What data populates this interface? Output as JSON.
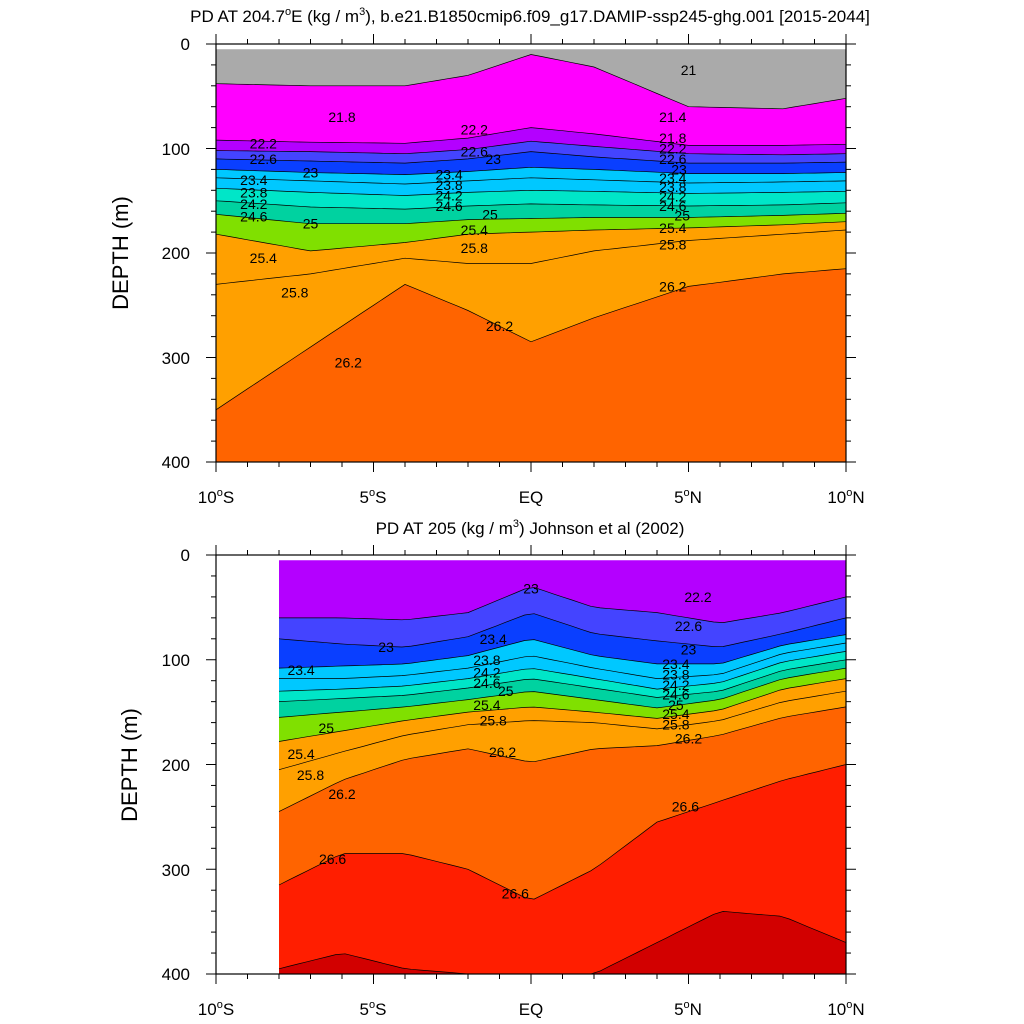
{
  "chart_data": [
    {
      "type": "contour",
      "title": "PD AT 204.7°E (kg / m³), b.e21.B1850cmip6.f09_g17.DAMIP-ssp245-ghg.001 [2015-2044]",
      "title_parts": {
        "prefix": "PD AT 204.7",
        "degree": "o",
        "suffix_a": "E (kg / m",
        "power": "3",
        "suffix_b": "), b.e21.B1850cmip6.f09_g17.DAMIP-ssp245-ghg.001 [2015-2044]"
      },
      "xlabel": "",
      "ylabel": "DEPTH (m)",
      "xlim": [
        -10,
        10
      ],
      "ylim": [
        0,
        400
      ],
      "y_inverted": true,
      "x_ticks": [
        {
          "value": -10,
          "num": "10",
          "sup": "o",
          "suffix": "S"
        },
        {
          "value": -5,
          "num": "5",
          "sup": "o",
          "suffix": "S"
        },
        {
          "value": 0,
          "num": "EQ",
          "sup": "",
          "suffix": ""
        },
        {
          "value": 5,
          "num": "5",
          "sup": "o",
          "suffix": "N"
        },
        {
          "value": 10,
          "num": "10",
          "sup": "o",
          "suffix": "N"
        }
      ],
      "y_ticks": [
        0,
        100,
        200,
        300,
        400
      ],
      "data_x_range": [
        -10,
        10
      ],
      "contour_interval": 0.2,
      "isopycnals": [
        {
          "value": 21.8,
          "x": [
            -10,
            -7,
            -4,
            -2,
            0,
            2,
            5,
            8,
            10
          ],
          "y": [
            38,
            40,
            40,
            30,
            10,
            22,
            60,
            62,
            52
          ]
        },
        {
          "value": 22.2,
          "x": [
            -10,
            -7,
            -4,
            -2,
            0,
            2,
            5,
            8,
            10
          ],
          "y": [
            92,
            94,
            95,
            90,
            80,
            86,
            97,
            97,
            96
          ]
        },
        {
          "value": 22.6,
          "x": [
            -10,
            -7,
            -4,
            -2,
            0,
            2,
            5,
            8,
            10
          ],
          "y": [
            102,
            103,
            105,
            101,
            93,
            98,
            105,
            106,
            105
          ]
        },
        {
          "value": 23.0,
          "x": [
            -10,
            -7,
            -4,
            -2,
            0,
            2,
            5,
            8,
            10
          ],
          "y": [
            110,
            112,
            114,
            110,
            103,
            108,
            114,
            114,
            113
          ]
        },
        {
          "value": 23.4,
          "x": [
            -10,
            -7,
            -4,
            -2,
            0,
            2,
            5,
            8,
            10
          ],
          "y": [
            120,
            123,
            125,
            122,
            118,
            120,
            124,
            124,
            123
          ]
        },
        {
          "value": 23.8,
          "x": [
            -10,
            -7,
            -4,
            -2,
            0,
            2,
            5,
            8,
            10
          ],
          "y": [
            128,
            131,
            134,
            131,
            128,
            130,
            133,
            132,
            131
          ]
        },
        {
          "value": 24.2,
          "x": [
            -10,
            -7,
            -4,
            -2,
            0,
            2,
            5,
            8,
            10
          ],
          "y": [
            138,
            142,
            145,
            142,
            140,
            141,
            143,
            142,
            141
          ]
        },
        {
          "value": 24.6,
          "x": [
            -10,
            -7,
            -4,
            -2,
            0,
            2,
            5,
            8,
            10
          ],
          "y": [
            150,
            156,
            158,
            155,
            153,
            154,
            155,
            154,
            152
          ]
        },
        {
          "value": 25.0,
          "x": [
            -10,
            -7,
            -4,
            -2,
            0,
            2,
            5,
            8,
            10
          ],
          "y": [
            163,
            172,
            172,
            168,
            167,
            166,
            166,
            164,
            162
          ]
        },
        {
          "value": 25.4,
          "x": [
            -10,
            -7,
            -4,
            -2,
            0,
            2,
            5,
            8,
            10
          ],
          "y": [
            182,
            198,
            190,
            182,
            180,
            178,
            176,
            173,
            170
          ]
        },
        {
          "value": 25.8,
          "x": [
            -10,
            -7,
            -4,
            -2,
            0,
            2,
            5,
            8,
            10
          ],
          "y": [
            230,
            220,
            205,
            210,
            210,
            198,
            188,
            182,
            178
          ]
        },
        {
          "value": 26.2,
          "x": [
            -10,
            -7,
            -4,
            -2,
            0,
            2,
            5,
            8,
            10
          ],
          "y": [
            350,
            290,
            230,
            255,
            285,
            262,
            232,
            220,
            215
          ]
        }
      ],
      "contour_labels": [
        {
          "text": "21",
          "x": 5.0,
          "y": 25
        },
        {
          "text": "21.4",
          "x": 4.5,
          "y": 70
        },
        {
          "text": "21.8",
          "x": -6.0,
          "y": 70
        },
        {
          "text": "21.8",
          "x": 4.5,
          "y": 90
        },
        {
          "text": "22.2",
          "x": -8.5,
          "y": 95
        },
        {
          "text": "22.2",
          "x": -1.8,
          "y": 82
        },
        {
          "text": "22.2",
          "x": 4.5,
          "y": 100
        },
        {
          "text": "22.6",
          "x": -8.5,
          "y": 110
        },
        {
          "text": "22.6",
          "x": -1.8,
          "y": 103
        },
        {
          "text": "22.6",
          "x": 4.5,
          "y": 110
        },
        {
          "text": "23",
          "x": -7.0,
          "y": 123
        },
        {
          "text": "23",
          "x": -1.2,
          "y": 110
        },
        {
          "text": "23",
          "x": 4.7,
          "y": 120
        },
        {
          "text": "23.4",
          "x": -8.8,
          "y": 130
        },
        {
          "text": "23.4",
          "x": -2.6,
          "y": 125
        },
        {
          "text": "23.4",
          "x": 4.5,
          "y": 128
        },
        {
          "text": "23.8",
          "x": -8.8,
          "y": 142
        },
        {
          "text": "23.8",
          "x": -2.6,
          "y": 135
        },
        {
          "text": "23.8",
          "x": 4.5,
          "y": 137
        },
        {
          "text": "24.2",
          "x": -8.8,
          "y": 153
        },
        {
          "text": "24.2",
          "x": -2.6,
          "y": 145
        },
        {
          "text": "24.2",
          "x": 4.5,
          "y": 146
        },
        {
          "text": "24.6",
          "x": -8.8,
          "y": 165
        },
        {
          "text": "24.6",
          "x": -2.6,
          "y": 155
        },
        {
          "text": "24.6",
          "x": 4.5,
          "y": 155
        },
        {
          "text": "25",
          "x": -7.0,
          "y": 172
        },
        {
          "text": "25",
          "x": -1.3,
          "y": 163
        },
        {
          "text": "25",
          "x": 4.8,
          "y": 164
        },
        {
          "text": "25.4",
          "x": -8.5,
          "y": 205
        },
        {
          "text": "25.4",
          "x": -1.8,
          "y": 178
        },
        {
          "text": "25.4",
          "x": 4.5,
          "y": 176
        },
        {
          "text": "25.8",
          "x": -7.5,
          "y": 238
        },
        {
          "text": "25.8",
          "x": -1.8,
          "y": 195
        },
        {
          "text": "25.8",
          "x": 4.5,
          "y": 192
        },
        {
          "text": "26.2",
          "x": -5.8,
          "y": 305
        },
        {
          "text": "26.2",
          "x": -1.0,
          "y": 270
        },
        {
          "text": "26.2",
          "x": 4.5,
          "y": 232
        }
      ]
    },
    {
      "type": "contour",
      "title": "PD AT 205 (kg / m³) Johnson et al (2002)",
      "title_parts": {
        "prefix": "PD AT 205 (kg / m",
        "power": "3",
        "suffix": ") Johnson et al (2002)"
      },
      "xlabel": "",
      "ylabel": "DEPTH (m)",
      "xlim": [
        -10,
        10
      ],
      "ylim": [
        0,
        400
      ],
      "y_inverted": true,
      "x_ticks": [
        {
          "value": -10,
          "num": "10",
          "sup": "o",
          "suffix": "S"
        },
        {
          "value": -5,
          "num": "5",
          "sup": "o",
          "suffix": "S"
        },
        {
          "value": 0,
          "num": "EQ",
          "sup": "",
          "suffix": ""
        },
        {
          "value": 5,
          "num": "5",
          "sup": "o",
          "suffix": "N"
        },
        {
          "value": 10,
          "num": "10",
          "sup": "o",
          "suffix": "N"
        }
      ],
      "y_ticks": [
        0,
        100,
        200,
        300,
        400
      ],
      "data_x_range": [
        -8,
        10
      ],
      "contour_interval": 0.2,
      "isopycnals": [
        {
          "value": 22.6,
          "x": [
            -8,
            -6,
            -4,
            -2,
            0,
            2,
            4,
            6,
            8,
            10
          ],
          "y": [
            60,
            60,
            62,
            55,
            30,
            50,
            55,
            65,
            55,
            40
          ]
        },
        {
          "value": 23.0,
          "x": [
            -8,
            -6,
            -4,
            -2,
            0,
            2,
            4,
            6,
            8,
            10
          ],
          "y": [
            80,
            85,
            88,
            78,
            55,
            75,
            82,
            88,
            75,
            60
          ]
        },
        {
          "value": 23.4,
          "x": [
            -8,
            -6,
            -4,
            -2,
            0,
            2,
            4,
            6,
            8,
            10
          ],
          "y": [
            108,
            106,
            104,
            96,
            80,
            96,
            104,
            104,
            86,
            76
          ]
        },
        {
          "value": 23.8,
          "x": [
            -8,
            -6,
            -4,
            -2,
            0,
            2,
            4,
            6,
            8,
            10
          ],
          "y": [
            118,
            118,
            115,
            108,
            96,
            108,
            118,
            114,
            94,
            84
          ]
        },
        {
          "value": 24.2,
          "x": [
            -8,
            -6,
            -4,
            -2,
            0,
            2,
            4,
            6,
            8,
            10
          ],
          "y": [
            130,
            128,
            125,
            118,
            108,
            118,
            128,
            122,
            102,
            92
          ]
        },
        {
          "value": 24.6,
          "x": [
            -8,
            -6,
            -4,
            -2,
            0,
            2,
            4,
            6,
            8,
            10
          ],
          "y": [
            140,
            137,
            134,
            127,
            118,
            127,
            136,
            130,
            110,
            100
          ]
        },
        {
          "value": 25.0,
          "x": [
            -8,
            -6,
            -4,
            -2,
            0,
            2,
            4,
            6,
            8,
            10
          ],
          "y": [
            155,
            150,
            145,
            138,
            130,
            138,
            146,
            138,
            118,
            108
          ]
        },
        {
          "value": 25.4,
          "x": [
            -8,
            -6,
            -4,
            -2,
            0,
            2,
            4,
            6,
            8,
            10
          ],
          "y": [
            178,
            168,
            158,
            150,
            145,
            150,
            156,
            148,
            128,
            118
          ]
        },
        {
          "value": 25.8,
          "x": [
            -8,
            -6,
            -4,
            -2,
            0,
            2,
            4,
            6,
            8,
            10
          ],
          "y": [
            205,
            188,
            172,
            162,
            158,
            160,
            166,
            158,
            140,
            130
          ]
        },
        {
          "value": 26.2,
          "x": [
            -8,
            -6,
            -4,
            -2,
            0,
            2,
            4,
            6,
            8,
            10
          ],
          "y": [
            245,
            215,
            195,
            185,
            198,
            185,
            182,
            172,
            155,
            145
          ]
        },
        {
          "value": 26.6,
          "x": [
            -8,
            -6,
            -4,
            -2,
            0,
            2,
            4,
            6,
            8,
            10
          ],
          "y": [
            315,
            285,
            285,
            300,
            330,
            300,
            255,
            235,
            215,
            200
          ]
        },
        {
          "value": 27.0,
          "x": [
            -8,
            -6,
            -4,
            -2,
            0,
            2,
            4,
            6,
            8,
            10
          ],
          "y": [
            395,
            380,
            395,
            400,
            400,
            400,
            370,
            340,
            345,
            370
          ]
        }
      ],
      "contour_labels": [
        {
          "text": "22.2",
          "x": 5.3,
          "y": 40
        },
        {
          "text": "22.6",
          "x": 5.0,
          "y": 68
        },
        {
          "text": "23",
          "x": 0.0,
          "y": 32
        },
        {
          "text": "23",
          "x": -4.6,
          "y": 88
        },
        {
          "text": "23",
          "x": 5.0,
          "y": 90
        },
        {
          "text": "23.4",
          "x": -7.3,
          "y": 110
        },
        {
          "text": "23.4",
          "x": -1.2,
          "y": 80
        },
        {
          "text": "23.4",
          "x": 4.6,
          "y": 104
        },
        {
          "text": "23.8",
          "x": -1.4,
          "y": 100
        },
        {
          "text": "23.8",
          "x": 4.6,
          "y": 114
        },
        {
          "text": "24.2",
          "x": -1.4,
          "y": 112
        },
        {
          "text": "24.2",
          "x": 4.6,
          "y": 124
        },
        {
          "text": "24.6",
          "x": -1.4,
          "y": 122
        },
        {
          "text": "24.6",
          "x": 4.6,
          "y": 133
        },
        {
          "text": "25",
          "x": -0.8,
          "y": 130
        },
        {
          "text": "25",
          "x": 4.6,
          "y": 143
        },
        {
          "text": "25.4",
          "x": -1.4,
          "y": 143
        },
        {
          "text": "25.4",
          "x": 4.6,
          "y": 152
        },
        {
          "text": "25.8",
          "x": -1.2,
          "y": 158
        },
        {
          "text": "25.8",
          "x": 4.6,
          "y": 162
        },
        {
          "text": "25",
          "x": -6.5,
          "y": 165
        },
        {
          "text": "25.4",
          "x": -7.3,
          "y": 190
        },
        {
          "text": "25.8",
          "x": -7.0,
          "y": 210
        },
        {
          "text": "26.2",
          "x": -6.0,
          "y": 228
        },
        {
          "text": "26.2",
          "x": -0.9,
          "y": 188
        },
        {
          "text": "26.2",
          "x": 5.0,
          "y": 175
        },
        {
          "text": "26.6",
          "x": -6.3,
          "y": 290
        },
        {
          "text": "26.6",
          "x": 4.9,
          "y": 240
        },
        {
          "text": "26.6",
          "x": -0.5,
          "y": 323
        }
      ]
    }
  ],
  "palette": {
    "21.0": "#6e6e6e",
    "21.4": "#aaaaaa",
    "21.8": "#ff00ff",
    "22.2": "#b400ff",
    "22.6": "#4444ff",
    "23.0": "#0a3fff",
    "23.4": "#0a8cff",
    "23.8": "#00c8ff",
    "24.2": "#00e6c8",
    "24.6": "#00d2a0",
    "25.0": "#80e000",
    "25.4": "#f0e000",
    "25.8": "#ffa000",
    "26.2": "#ff6400",
    "26.6": "#ff1e00",
    "27.0": "#d20000"
  }
}
